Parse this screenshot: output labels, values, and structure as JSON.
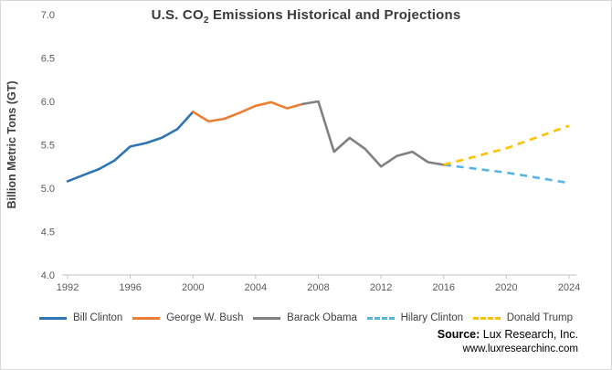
{
  "title": {
    "text_prefix": "U.S. CO",
    "subscript": "2",
    "text_suffix": " Emissions Historical and Projections"
  },
  "source": {
    "label": "Source:",
    "org": "Lux Research, Inc.",
    "site": "www.luxresearchinc.com"
  },
  "chart_data": {
    "type": "line",
    "title": "U.S. CO2 Emissions Historical and Projections",
    "xlabel": "",
    "ylabel": "Billion Metric Tons (GT)",
    "xlim": [
      1992,
      2024
    ],
    "ylim": [
      4.0,
      7.0
    ],
    "xticks": [
      1992,
      1996,
      2000,
      2004,
      2008,
      2012,
      2016,
      2020,
      2024
    ],
    "yticks": [
      "4.0",
      "4.5",
      "5.0",
      "5.5",
      "6.0",
      "6.5",
      "7.0"
    ],
    "grid": false,
    "legend_position": "bottom",
    "series": [
      {
        "name": "Bill Clinton",
        "color": "#2E75B6",
        "dash": false,
        "x": [
          1992,
          1993,
          1994,
          1995,
          1996,
          1997,
          1998,
          1999,
          2000
        ],
        "y": [
          5.08,
          5.15,
          5.22,
          5.32,
          5.48,
          5.52,
          5.58,
          5.68,
          5.88
        ]
      },
      {
        "name": "George W. Bush",
        "color": "#ED7D31",
        "dash": false,
        "x": [
          2000,
          2001,
          2002,
          2003,
          2004,
          2005,
          2006,
          2007
        ],
        "y": [
          5.88,
          5.77,
          5.8,
          5.87,
          5.95,
          5.99,
          5.92,
          5.97
        ]
      },
      {
        "name": "Barack Obama",
        "color": "#808080",
        "dash": false,
        "x": [
          2007,
          2008,
          2009,
          2010,
          2011,
          2012,
          2013,
          2014,
          2015,
          2016
        ],
        "y": [
          5.97,
          6.0,
          5.42,
          5.58,
          5.45,
          5.25,
          5.37,
          5.42,
          5.3,
          5.27
        ]
      },
      {
        "name": "Hilary Clinton",
        "color": "#56B4E9",
        "dash": true,
        "x": [
          2016,
          2020,
          2024
        ],
        "y": [
          5.27,
          5.18,
          5.06
        ]
      },
      {
        "name": "Donald Trump",
        "color": "#FFC000",
        "dash": true,
        "x": [
          2016,
          2020,
          2024
        ],
        "y": [
          5.27,
          5.46,
          5.72
        ]
      }
    ]
  }
}
